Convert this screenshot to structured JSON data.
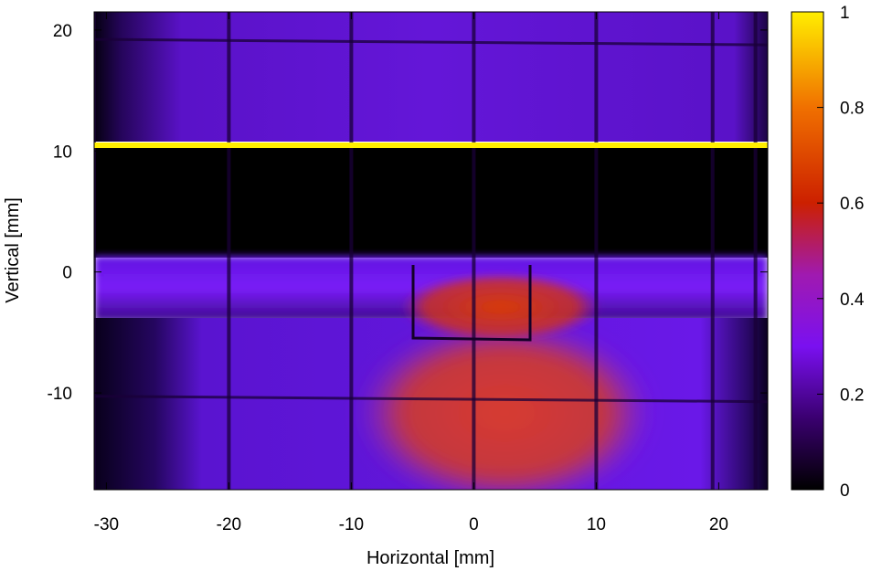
{
  "chart_data": {
    "type": "heatmap",
    "title": "",
    "xlabel": "Horizontal [mm]",
    "ylabel": "Vertical [mm]",
    "xlim": [
      -31,
      24
    ],
    "ylim": [
      -18,
      21.5
    ],
    "x_ticks": [
      -30,
      -20,
      -10,
      0,
      10,
      20
    ],
    "x_tick_labels": [
      "-30",
      "-20",
      "-10",
      "0",
      "10",
      "20"
    ],
    "y_ticks": [
      -10,
      0,
      10,
      20
    ],
    "y_tick_labels": [
      "-10",
      "0",
      "10",
      "20"
    ],
    "colorbar": {
      "range": [
        0,
        1
      ],
      "ticks": [
        0,
        0.2,
        0.4,
        0.6,
        0.8,
        1
      ],
      "tick_labels": [
        "0",
        "0.2",
        "0.4",
        "0.6",
        "0.8",
        "1"
      ],
      "colors": [
        "#000000",
        "#3a0070",
        "#7a10f0",
        "#a01ab0",
        "#cc2000",
        "#f07000",
        "#ffee00"
      ]
    },
    "grid": false,
    "legend": "colorbar-right",
    "regions": [
      {
        "x": [
          -31,
          24
        ],
        "y": [
          11,
          21.5
        ],
        "value": 0.21
      },
      {
        "x": [
          -31,
          24
        ],
        "y": [
          10.5,
          11
        ],
        "value": 1.0
      },
      {
        "x": [
          -31,
          24
        ],
        "y": [
          1,
          10.5
        ],
        "value": 0.0
      },
      {
        "x": [
          -31,
          24
        ],
        "y": [
          -4,
          1
        ],
        "value": 0.27
      },
      {
        "x": [
          -26,
          24
        ],
        "y": [
          -18,
          -4
        ],
        "value": 0.25
      },
      {
        "x": [
          -9,
          11
        ],
        "y": [
          -18,
          -6
        ],
        "value": 0.5
      },
      {
        "x": [
          -5,
          5
        ],
        "y": [
          -4,
          -1
        ],
        "value": 0.55
      }
    ],
    "grid_wires_x": [
      -31,
      -20,
      -10,
      0,
      10,
      19.5,
      23
    ],
    "grid_wires_y": [
      19,
      -10.5
    ]
  }
}
